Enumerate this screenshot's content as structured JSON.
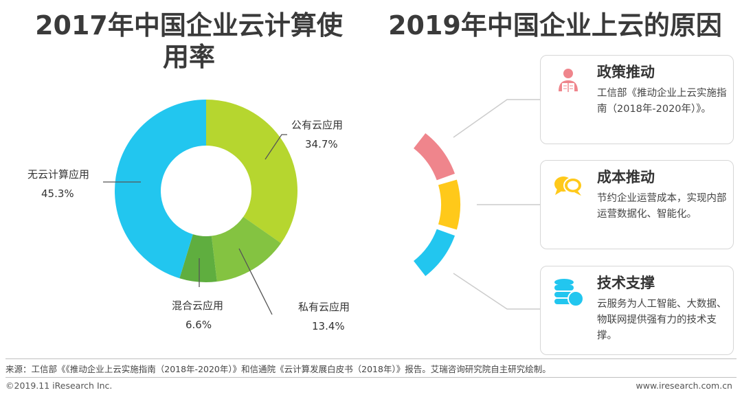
{
  "left_title": "2017年中国企业云计算使用率",
  "right_title": "2019年中国企业上云的原因",
  "chart_data": {
    "type": "pie",
    "title": "2017年中国企业云计算使用率",
    "categories": [
      "公有云应用",
      "私有云应用",
      "混合云应用",
      "无云计算应用"
    ],
    "values": [
      34.7,
      13.4,
      6.6,
      45.3
    ],
    "value_labels": [
      "34.7%",
      "13.4%",
      "6.6%",
      "45.3%"
    ],
    "colors": [
      "#b6d62f",
      "#84c341",
      "#5fae3f",
      "#22c6ef"
    ]
  },
  "reasons": [
    {
      "title": "政策推动",
      "text": "工信部《推动企业上云实施指南（2018年-2020年）》。",
      "color": "#ef858c",
      "icon": "reader-icon"
    },
    {
      "title": "成本推动",
      "text": "节约企业运营成本，实现内部运营数据化、智能化。",
      "color": "#ffc91a",
      "icon": "chat-bubbles-icon"
    },
    {
      "title": "技术支撑",
      "text": "云服务为人工智能、大数据、物联网提供强有力的技术支撑。",
      "color": "#22c6ef",
      "icon": "database-icon"
    }
  ],
  "footer": {
    "source": "来源：工信部《《推动企业上云实施指南（2018年-2020年）》和信通院《云计算发展白皮书（2018年）》报告。艾瑞咨询研究院自主研究绘制。",
    "copyright": "©2019.11 iResearch Inc.",
    "website": "www.iresearch.com.cn"
  }
}
